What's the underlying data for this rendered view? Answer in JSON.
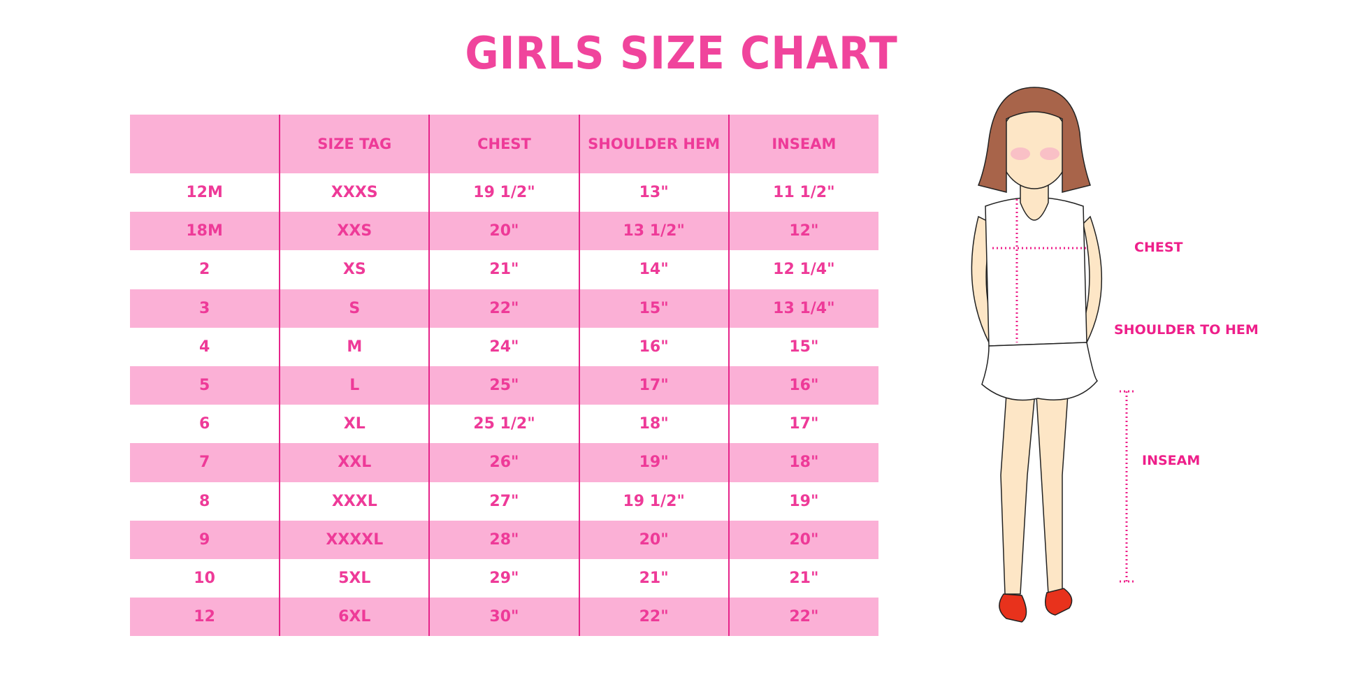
{
  "title": "GIRLS SIZE CHART",
  "table": {
    "headers": [
      "",
      "SIZE TAG",
      "CHEST",
      "SHOULDER HEM",
      "INSEAM"
    ],
    "rows": [
      [
        "12M",
        "XXXS",
        "19 1/2\"",
        "13\"",
        "11 1/2\""
      ],
      [
        "18M",
        "XXS",
        "20\"",
        "13 1/2\"",
        "12\""
      ],
      [
        "2",
        "XS",
        "21\"",
        "14\"",
        "12 1/4\""
      ],
      [
        "3",
        "S",
        "22\"",
        "15\"",
        "13 1/4\""
      ],
      [
        "4",
        "M",
        "24\"",
        "16\"",
        "15\""
      ],
      [
        "5",
        "L",
        "25\"",
        "17\"",
        "16\""
      ],
      [
        "6",
        "XL",
        "25 1/2\"",
        "18\"",
        "17\""
      ],
      [
        "7",
        "XXL",
        "26\"",
        "19\"",
        "18\""
      ],
      [
        "8",
        "XXXL",
        "27\"",
        "19 1/2\"",
        "19\""
      ],
      [
        "9",
        "XXXXL",
        "28\"",
        "20\"",
        "20\""
      ],
      [
        "10",
        "5XL",
        "29\"",
        "21\"",
        "21\""
      ],
      [
        "12",
        "6XL",
        "30\"",
        "22\"",
        "22\""
      ]
    ]
  },
  "diagram": {
    "labels": {
      "chest": "CHEST",
      "shoulder_to_hem": "SHOULDER TO HEM",
      "inseam": "INSEAM"
    }
  },
  "colors": {
    "accent": "#ee3a98",
    "band": "#fbb0d6",
    "divider": "#e6248a"
  }
}
